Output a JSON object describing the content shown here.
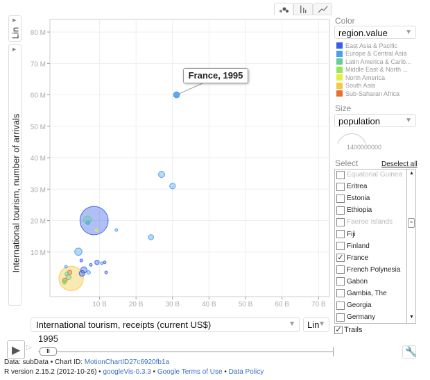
{
  "chart_tabs": [
    {
      "name": "bubble",
      "icon": "bubble-chart-icon"
    },
    {
      "name": "bar",
      "icon": "bar-chart-icon"
    },
    {
      "name": "line",
      "icon": "line-chart-icon"
    }
  ],
  "y_axis": {
    "scale": "Lin",
    "label": "International tourism, number of arrivals",
    "ticks": [
      "10 M",
      "20 M",
      "30 M",
      "40 M",
      "50 M",
      "60 M",
      "70 M",
      "80 M"
    ]
  },
  "x_axis": {
    "scale": "Lin",
    "label": "International tourism, receipts (current US$)",
    "ticks": [
      "10 B",
      "20 B",
      "30 B",
      "40 B",
      "50 B",
      "60 B",
      "70 B"
    ]
  },
  "color": {
    "label": "Color",
    "value": "region.value",
    "legend": [
      {
        "label": "East Asia & Pacific",
        "color": "#3a5ee8"
      },
      {
        "label": "Europe & Central Asia",
        "color": "#4a9ef0"
      },
      {
        "label": "Latin America & Carib...",
        "color": "#66cc99"
      },
      {
        "label": "Middle East & North ...",
        "color": "#99e655"
      },
      {
        "label": "North America",
        "color": "#e6ee44"
      },
      {
        "label": "South Asia",
        "color": "#f5c842"
      },
      {
        "label": "Sub-Saharan Africa",
        "color": "#e8702e"
      }
    ]
  },
  "size": {
    "label": "Size",
    "value": "population",
    "legend_value": "1400000000"
  },
  "select": {
    "label": "Select",
    "deselect_label": "Deselect all",
    "items": [
      {
        "label": "Equatorial Guinea",
        "checked": false,
        "disabled": true
      },
      {
        "label": "Eritrea",
        "checked": false,
        "disabled": false
      },
      {
        "label": "Estonia",
        "checked": false,
        "disabled": false
      },
      {
        "label": "Ethiopia",
        "checked": false,
        "disabled": false
      },
      {
        "label": "Faeroe Islands",
        "checked": false,
        "disabled": true
      },
      {
        "label": "Fiji",
        "checked": false,
        "disabled": false
      },
      {
        "label": "Finland",
        "checked": false,
        "disabled": false
      },
      {
        "label": "France",
        "checked": true,
        "disabled": false
      },
      {
        "label": "French Polynesia",
        "checked": false,
        "disabled": false
      },
      {
        "label": "Gabon",
        "checked": false,
        "disabled": false
      },
      {
        "label": "Gambia, The",
        "checked": false,
        "disabled": false
      },
      {
        "label": "Georgia",
        "checked": false,
        "disabled": false
      },
      {
        "label": "Germany",
        "checked": false,
        "disabled": false
      }
    ]
  },
  "trails": {
    "label": "Trails",
    "checked": true
  },
  "year": "1995",
  "tooltip": "France, 1995",
  "footer": {
    "line1_prefix": "Data: subData • Chart ID: ",
    "chart_id": "MotionChartID27c6920fb1a",
    "line2_prefix": "R version 2.15.2 (2012-10-26) • ",
    "googlevis": "googleVis-0.3.3",
    "sep": " • ",
    "terms": "Google Terms of Use",
    "policy": "Data Policy"
  },
  "chart_data": {
    "type": "scatter",
    "subtype": "bubble",
    "year": "1995",
    "xlim": [
      -3.6,
      73
    ],
    "ylim": [
      -4.2,
      84
    ],
    "x_unit": "B",
    "y_unit": "M",
    "grid": true,
    "points": [
      {
        "x": 31.1,
        "y": 60.0,
        "pop": 58000000,
        "region": 1,
        "label": "France"
      },
      {
        "x": 27.0,
        "y": 34.7,
        "pop": 60000000,
        "region": 1
      },
      {
        "x": 30.0,
        "y": 31.0,
        "pop": 50000000,
        "region": 1
      },
      {
        "x": 8.5,
        "y": 20.0,
        "pop": 1200000000,
        "region": 0
      },
      {
        "x": 6.7,
        "y": 20.2,
        "pop": 90000000,
        "region": 2
      },
      {
        "x": 6.8,
        "y": 19.3,
        "pop": 20000000,
        "region": 1
      },
      {
        "x": 9.2,
        "y": 16.9,
        "pop": 10000000,
        "region": 4
      },
      {
        "x": 14.6,
        "y": 17.0,
        "pop": 3000000,
        "region": 1
      },
      {
        "x": 24.1,
        "y": 14.7,
        "pop": 40000000,
        "region": 1
      },
      {
        "x": 4.2,
        "y": 10.1,
        "pop": 80000000,
        "region": 1
      },
      {
        "x": 5.0,
        "y": 7.3,
        "pop": 10000000,
        "region": 0
      },
      {
        "x": 9.3,
        "y": 6.7,
        "pop": 30000000,
        "region": 0
      },
      {
        "x": 10.6,
        "y": 6.4,
        "pop": 5000000,
        "region": 1
      },
      {
        "x": 11.4,
        "y": 6.7,
        "pop": 4000000,
        "region": 0
      },
      {
        "x": 7.6,
        "y": 5.9,
        "pop": 5000000,
        "region": 0
      },
      {
        "x": 11.8,
        "y": 3.5,
        "pop": 5000000,
        "region": 0
      },
      {
        "x": 2.2,
        "y": 1.6,
        "pop": 900000000,
        "region": 5
      },
      {
        "x": 5.7,
        "y": 4.3,
        "pop": 60000000,
        "region": 0
      },
      {
        "x": 5.2,
        "y": 3.2,
        "pop": 50000000,
        "region": 0
      },
      {
        "x": 7.0,
        "y": 3.5,
        "pop": 20000000,
        "region": 1
      },
      {
        "x": 0.8,
        "y": 5.3,
        "pop": 5000000,
        "region": 1
      },
      {
        "x": 1.0,
        "y": 3.0,
        "pop": 20000000,
        "region": 2
      },
      {
        "x": 1.5,
        "y": 2.0,
        "pop": 40000000,
        "region": 2
      },
      {
        "x": 1.8,
        "y": 3.5,
        "pop": 30000000,
        "region": 6
      },
      {
        "x": 0.5,
        "y": 1.0,
        "pop": 30000000,
        "region": 6
      },
      {
        "x": 0.3,
        "y": 0.5,
        "pop": 20000000,
        "region": 2
      },
      {
        "x": 0.4,
        "y": 0.2,
        "pop": 15000000,
        "region": 3
      }
    ]
  }
}
